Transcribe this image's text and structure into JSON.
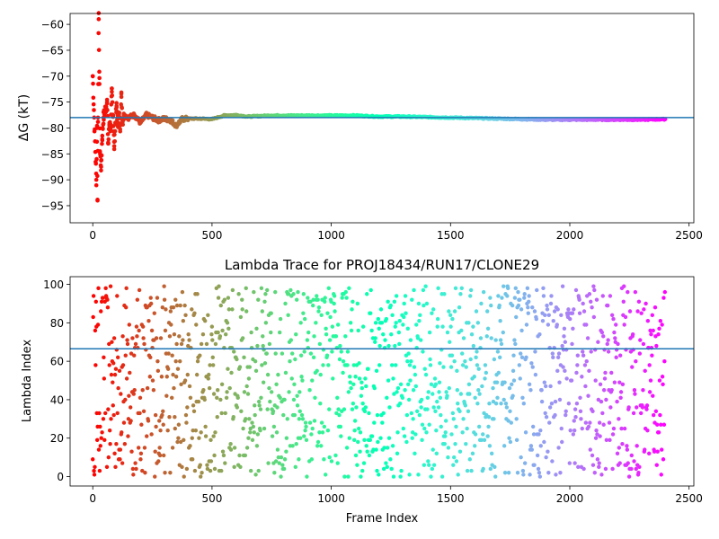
{
  "chart_data": [
    {
      "type": "scatter",
      "title": "",
      "xlabel": "",
      "ylabel": "ΔG (kT)",
      "xlim": [
        -95,
        2520
      ],
      "ylim": [
        -98.3,
        -57.9
      ],
      "xticks": [
        0,
        500,
        1000,
        1500,
        2000,
        2500
      ],
      "yticks": [
        -95,
        -90,
        -85,
        -80,
        -75,
        -70,
        -65,
        -60
      ],
      "hline": -78,
      "colormap": "rainbow (red → violet with increasing frame)",
      "series": [
        {
          "x": [
            0,
            15,
            18,
            20,
            22,
            25,
            28,
            30,
            35,
            40,
            45,
            50,
            55,
            60,
            65,
            70,
            75,
            80,
            85,
            90,
            95,
            100,
            105,
            110,
            115,
            120,
            125,
            130,
            150,
            175,
            200,
            225,
            250,
            275,
            300,
            325,
            350,
            375,
            400,
            450,
            500,
            550,
            600,
            650,
            700,
            750,
            800,
            900,
            1000,
            1100,
            1200,
            1300,
            1400,
            1500,
            1600,
            1700,
            1800,
            1900,
            2000,
            2100,
            2200,
            2300,
            2400
          ],
          "y": [
            -70,
            -90,
            -80,
            -94,
            -78,
            -59,
            -71.5,
            -84.5,
            -87.5,
            -81.5,
            -78,
            -77,
            -76,
            -75,
            -83,
            -79,
            -80,
            -73,
            -77.5,
            -83.5,
            -79,
            -76,
            -79,
            -77.5,
            -79.5,
            -74,
            -78.5,
            -77.5,
            -78,
            -77.5,
            -79,
            -77.5,
            -78,
            -78.5,
            -78.2,
            -78.5,
            -79.5,
            -78.3,
            -78.2,
            -78.2,
            -78.3,
            -77.6,
            -77.5,
            -77.8,
            -77.7,
            -77.6,
            -77.6,
            -77.6,
            -77.6,
            -77.6,
            -77.8,
            -77.8,
            -77.9,
            -78,
            -78.1,
            -78.2,
            -78.3,
            -78.4,
            -78.4,
            -78.4,
            -78.4,
            -78.4,
            -78.3
          ]
        }
      ]
    },
    {
      "type": "scatter",
      "title": "Lambda Trace for PROJ18434/RUN17/CLONE29",
      "xlabel": "Frame Index",
      "ylabel": "Lambda Index",
      "xlim": [
        -95,
        2520
      ],
      "ylim": [
        -4.9,
        104
      ],
      "xticks": [
        0,
        500,
        1000,
        1500,
        2000,
        2500
      ],
      "yticks": [
        0,
        20,
        40,
        60,
        80,
        100
      ],
      "hline": 66.5,
      "x_range": [
        0,
        2400
      ],
      "y_range": [
        0,
        99
      ],
      "colormap": "rainbow (red → violet with increasing frame)"
    }
  ]
}
